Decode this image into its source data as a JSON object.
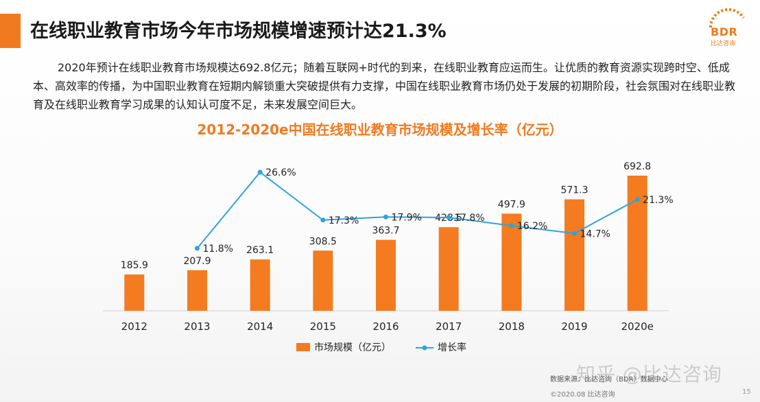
{
  "header": {
    "title": "在线职业教育市场今年市场规模增速预计达21.3%",
    "logo_text": "BDR",
    "logo_sub": "比达咨询"
  },
  "intro": "2020年预计在线职业教育市场规模达692.8亿元；随着互联网+时代的到来，在线职业教育应运而生。让优质的教育资源实现跨时空、低成本、高效率的传播，为中国职业教育在短期内解锁重大突破提供有力支撑，中国在线职业教育市场仍处于发展的初期阶段，社会氛围对在线职业教育及在线职业教育学习成果的认知认可度不足，未来发展空间巨大。",
  "chart_data": {
    "type": "bar+line",
    "title": "2012-2020e中国在线职业教育市场规模及增长率（亿元）",
    "categories": [
      "2012",
      "2013",
      "2014",
      "2015",
      "2016",
      "2017",
      "2018",
      "2019",
      "2020e"
    ],
    "series": [
      {
        "name": "市场规模（亿元）",
        "kind": "bar",
        "color": "#f47b20",
        "values": [
          185.9,
          207.9,
          263.1,
          308.5,
          363.7,
          428.5,
          497.9,
          571.3,
          692.8
        ],
        "labels": [
          "185.9",
          "207.9",
          "263.1",
          "308.5",
          "363.7",
          "428.5",
          "497.9",
          "571.3",
          "692.8"
        ]
      },
      {
        "name": "增长率",
        "kind": "line",
        "color": "#2ea3dc",
        "values": [
          null,
          11.8,
          26.6,
          17.3,
          17.9,
          17.8,
          16.2,
          14.7,
          21.3
        ],
        "labels": [
          "",
          "11.8%",
          "26.6%",
          "17.3%",
          "17.9%",
          "17.8%",
          "16.2%",
          "14.7%",
          "21.3%"
        ]
      }
    ],
    "legend_position": "bottom-center",
    "grid": false
  },
  "footer": {
    "source": "数据来源：比达咨询（BDR）数据中心",
    "copyright": "©2020.08 比达咨询",
    "page": "15",
    "watermark": "知乎 @比达咨询"
  }
}
